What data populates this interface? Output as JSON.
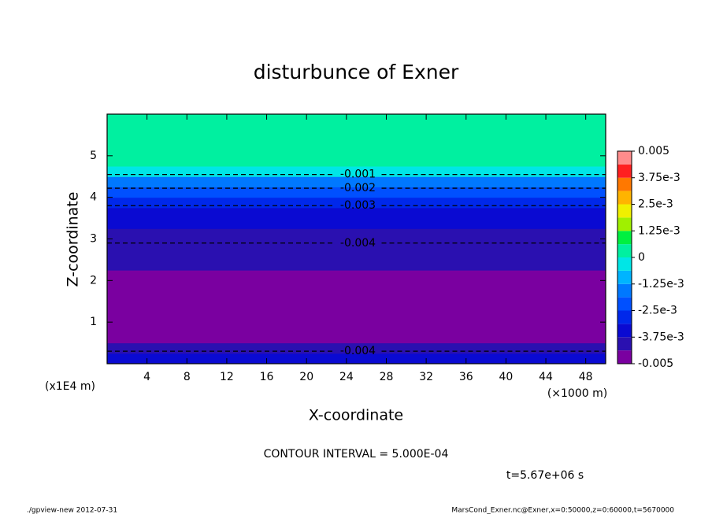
{
  "chart_data": {
    "type": "contour",
    "title": "disturbunce of Exner",
    "x_label": "X-coordinate",
    "y_label": "Z-coordinate",
    "x_unit": "(×1000 m)",
    "y_unit": "(x1E4 m)",
    "xlim": [
      0,
      50
    ],
    "ylim": [
      0,
      6
    ],
    "xticks": [
      4,
      8,
      12,
      16,
      20,
      24,
      28,
      32,
      36,
      40,
      44,
      48
    ],
    "yticks": [
      1,
      2,
      3,
      4,
      5
    ],
    "y": [
      0.125,
      0.375,
      0.625,
      0.875,
      1.125,
      1.375,
      1.625,
      1.875,
      2.125,
      2.375,
      2.625,
      2.875,
      3.125,
      3.375,
      3.625,
      3.875,
      4.125,
      4.375,
      4.625,
      4.875,
      5.125,
      5.375,
      5.625,
      5.875
    ],
    "values": [
      -0.0037,
      -0.0041,
      -0.0044,
      -0.0046,
      -0.0048,
      -0.0049,
      -0.0048,
      -0.0046,
      -0.0045,
      -0.0043,
      -0.0041,
      -0.004,
      -0.0039,
      -0.0037,
      -0.0034,
      -0.0029,
      -0.0022,
      -0.0015,
      -0.0006,
      0.0001,
      0.0002,
      0.0002,
      0.0001,
      0.0001
    ],
    "levels": [
      -0.005,
      -0.004375,
      -0.00375,
      -0.003125,
      -0.0025,
      -0.001875,
      -0.00125,
      -0.000625,
      0,
      0.000625,
      0.00125,
      0.001875,
      0.0025,
      0.003125,
      0.00375,
      0.004375,
      0.005
    ],
    "colors": [
      "#7a00a0",
      "#2a10b0",
      "#0a0ad2",
      "#0028ea",
      "#0050ff",
      "#0078ff",
      "#00b4ff",
      "#00e6e6",
      "#00f0a0",
      "#00f040",
      "#a0f000",
      "#f0f000",
      "#ffb400",
      "#ff7800",
      "#ff2020",
      "#ff8c8c"
    ],
    "colorbar_ticks": [
      -0.005,
      {
        "value": -0.00375,
        "label": "-3.75e-3"
      },
      {
        "value": -0.0025,
        "label": "-2.5e-3"
      },
      {
        "value": -0.00125,
        "label": "-1.25e-3"
      },
      0,
      {
        "value": 0.00125,
        "label": "1.25e-3"
      },
      {
        "value": 0.0025,
        "label": "2.5e-3"
      },
      {
        "value": 0.00375,
        "label": "3.75e-3"
      },
      0.005
    ],
    "contours": [
      {
        "level": -0.001,
        "z": 4.55
      },
      {
        "level": -0.002,
        "z": 4.22
      },
      {
        "level": -0.003,
        "z": 3.8
      },
      {
        "level": -0.004,
        "z": 2.9
      },
      {
        "level": -0.004,
        "z": 0.3
      }
    ],
    "contour_interval": "CONTOUR INTERVAL = 5.000E-04",
    "time_label": "t=5.67e+06 s",
    "footer_left": "./gpview-new  2012-07-31",
    "footer_right": "MarsCond_Exner.nc@Exner,x=0:50000,z=0:60000,t=5670000"
  }
}
